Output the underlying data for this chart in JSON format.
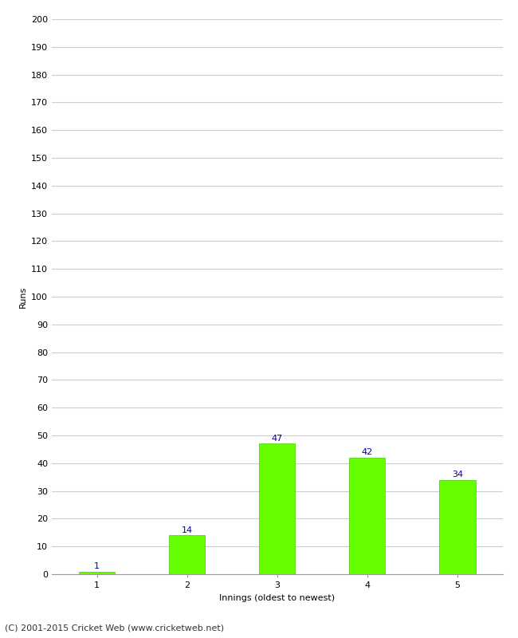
{
  "categories": [
    "1",
    "2",
    "3",
    "4",
    "5"
  ],
  "values": [
    1,
    14,
    47,
    42,
    34
  ],
  "bar_color": "#66ff00",
  "bar_edge_color": "#44cc00",
  "value_color": "#000099",
  "ylabel": "Runs",
  "xlabel": "Innings (oldest to newest)",
  "ylim": [
    0,
    200
  ],
  "yticks": [
    0,
    10,
    20,
    30,
    40,
    50,
    60,
    70,
    80,
    90,
    100,
    110,
    120,
    130,
    140,
    150,
    160,
    170,
    180,
    190,
    200
  ],
  "footer": "(C) 2001-2015 Cricket Web (www.cricketweb.net)",
  "background_color": "#ffffff",
  "grid_color": "#cccccc",
  "value_fontsize": 8,
  "label_fontsize": 8,
  "ylabel_fontsize": 8,
  "footer_fontsize": 8,
  "bar_width": 0.4
}
